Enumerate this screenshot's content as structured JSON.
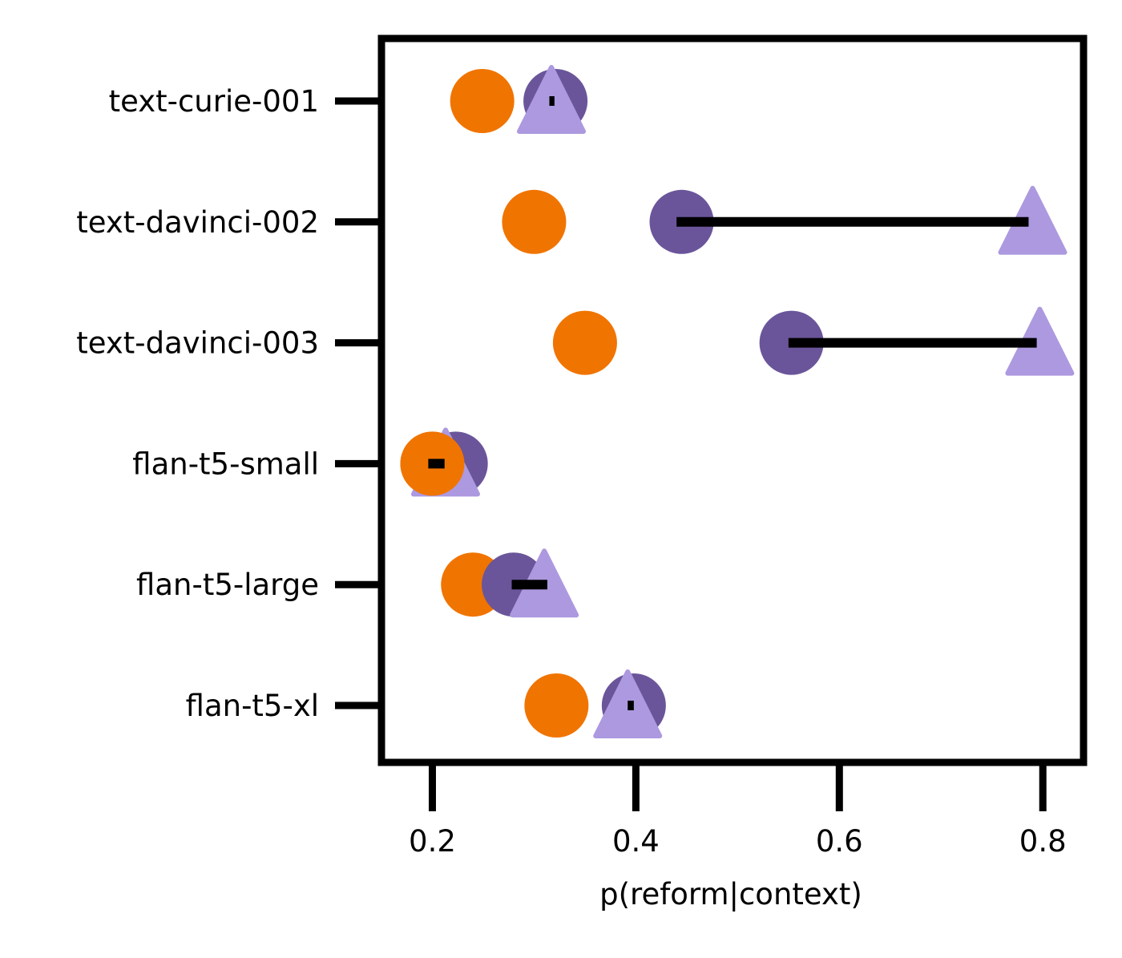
{
  "chart_data": {
    "type": "scatter",
    "title": "",
    "xlabel": "p(reform|context)",
    "ylabel": "",
    "xlim": [
      0.15,
      0.84
    ],
    "x_ticks": [
      0.2,
      0.4,
      0.6,
      0.8
    ],
    "x_tick_labels": [
      "0.2",
      "0.4",
      "0.6",
      "0.8"
    ],
    "categories": [
      "text-curie-001",
      "text-davinci-002",
      "text-davinci-003",
      "flan-t5-small",
      "flan-t5-large",
      "flan-t5-xl"
    ],
    "grid": false,
    "legend": "none",
    "series": [
      {
        "marker": "circle",
        "color": "#F07400",
        "values": [
          0.249,
          0.3,
          0.35,
          0.2,
          0.24,
          0.322
        ]
      },
      {
        "marker": "circle",
        "color": "#6A559A",
        "values": [
          0.321,
          0.445,
          0.553,
          0.223,
          0.28,
          0.398
        ]
      },
      {
        "marker": "triangle",
        "color": "#AC99DF",
        "values": [
          0.317,
          0.79,
          0.797,
          0.213,
          0.31,
          0.392
        ]
      }
    ],
    "connector": {
      "color": "#000000",
      "start": [
        0.315,
        0.44,
        0.55,
        0.196,
        0.278,
        0.392
      ],
      "end": [
        0.32,
        0.786,
        0.794,
        0.212,
        0.313,
        0.398
      ]
    }
  }
}
